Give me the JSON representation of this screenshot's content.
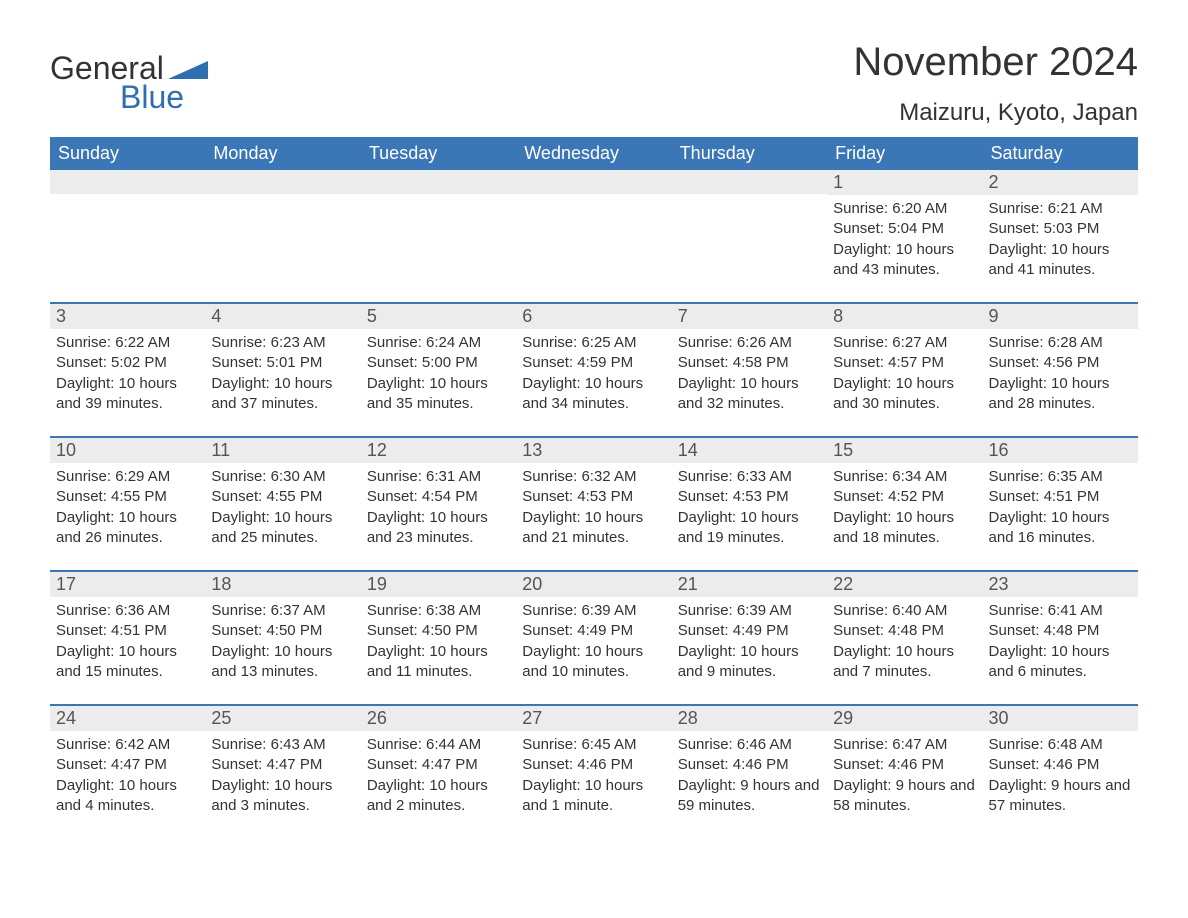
{
  "logo": {
    "text_general": "General",
    "text_blue": "Blue",
    "flag_color": "#2f6fb0"
  },
  "title": "November 2024",
  "location": "Maizuru, Kyoto, Japan",
  "colors": {
    "header_bg": "#3b76b6",
    "header_text": "#ffffff",
    "row_divider": "#3b76b6",
    "daynum_bg": "#ececec",
    "text": "#333333"
  },
  "weekdays": [
    "Sunday",
    "Monday",
    "Tuesday",
    "Wednesday",
    "Thursday",
    "Friday",
    "Saturday"
  ],
  "weeks": [
    [
      {
        "day": "",
        "sunrise": "",
        "sunset": "",
        "daylight": ""
      },
      {
        "day": "",
        "sunrise": "",
        "sunset": "",
        "daylight": ""
      },
      {
        "day": "",
        "sunrise": "",
        "sunset": "",
        "daylight": ""
      },
      {
        "day": "",
        "sunrise": "",
        "sunset": "",
        "daylight": ""
      },
      {
        "day": "",
        "sunrise": "",
        "sunset": "",
        "daylight": ""
      },
      {
        "day": "1",
        "sunrise": "Sunrise: 6:20 AM",
        "sunset": "Sunset: 5:04 PM",
        "daylight": "Daylight: 10 hours and 43 minutes."
      },
      {
        "day": "2",
        "sunrise": "Sunrise: 6:21 AM",
        "sunset": "Sunset: 5:03 PM",
        "daylight": "Daylight: 10 hours and 41 minutes."
      }
    ],
    [
      {
        "day": "3",
        "sunrise": "Sunrise: 6:22 AM",
        "sunset": "Sunset: 5:02 PM",
        "daylight": "Daylight: 10 hours and 39 minutes."
      },
      {
        "day": "4",
        "sunrise": "Sunrise: 6:23 AM",
        "sunset": "Sunset: 5:01 PM",
        "daylight": "Daylight: 10 hours and 37 minutes."
      },
      {
        "day": "5",
        "sunrise": "Sunrise: 6:24 AM",
        "sunset": "Sunset: 5:00 PM",
        "daylight": "Daylight: 10 hours and 35 minutes."
      },
      {
        "day": "6",
        "sunrise": "Sunrise: 6:25 AM",
        "sunset": "Sunset: 4:59 PM",
        "daylight": "Daylight: 10 hours and 34 minutes."
      },
      {
        "day": "7",
        "sunrise": "Sunrise: 6:26 AM",
        "sunset": "Sunset: 4:58 PM",
        "daylight": "Daylight: 10 hours and 32 minutes."
      },
      {
        "day": "8",
        "sunrise": "Sunrise: 6:27 AM",
        "sunset": "Sunset: 4:57 PM",
        "daylight": "Daylight: 10 hours and 30 minutes."
      },
      {
        "day": "9",
        "sunrise": "Sunrise: 6:28 AM",
        "sunset": "Sunset: 4:56 PM",
        "daylight": "Daylight: 10 hours and 28 minutes."
      }
    ],
    [
      {
        "day": "10",
        "sunrise": "Sunrise: 6:29 AM",
        "sunset": "Sunset: 4:55 PM",
        "daylight": "Daylight: 10 hours and 26 minutes."
      },
      {
        "day": "11",
        "sunrise": "Sunrise: 6:30 AM",
        "sunset": "Sunset: 4:55 PM",
        "daylight": "Daylight: 10 hours and 25 minutes."
      },
      {
        "day": "12",
        "sunrise": "Sunrise: 6:31 AM",
        "sunset": "Sunset: 4:54 PM",
        "daylight": "Daylight: 10 hours and 23 minutes."
      },
      {
        "day": "13",
        "sunrise": "Sunrise: 6:32 AM",
        "sunset": "Sunset: 4:53 PM",
        "daylight": "Daylight: 10 hours and 21 minutes."
      },
      {
        "day": "14",
        "sunrise": "Sunrise: 6:33 AM",
        "sunset": "Sunset: 4:53 PM",
        "daylight": "Daylight: 10 hours and 19 minutes."
      },
      {
        "day": "15",
        "sunrise": "Sunrise: 6:34 AM",
        "sunset": "Sunset: 4:52 PM",
        "daylight": "Daylight: 10 hours and 18 minutes."
      },
      {
        "day": "16",
        "sunrise": "Sunrise: 6:35 AM",
        "sunset": "Sunset: 4:51 PM",
        "daylight": "Daylight: 10 hours and 16 minutes."
      }
    ],
    [
      {
        "day": "17",
        "sunrise": "Sunrise: 6:36 AM",
        "sunset": "Sunset: 4:51 PM",
        "daylight": "Daylight: 10 hours and 15 minutes."
      },
      {
        "day": "18",
        "sunrise": "Sunrise: 6:37 AM",
        "sunset": "Sunset: 4:50 PM",
        "daylight": "Daylight: 10 hours and 13 minutes."
      },
      {
        "day": "19",
        "sunrise": "Sunrise: 6:38 AM",
        "sunset": "Sunset: 4:50 PM",
        "daylight": "Daylight: 10 hours and 11 minutes."
      },
      {
        "day": "20",
        "sunrise": "Sunrise: 6:39 AM",
        "sunset": "Sunset: 4:49 PM",
        "daylight": "Daylight: 10 hours and 10 minutes."
      },
      {
        "day": "21",
        "sunrise": "Sunrise: 6:39 AM",
        "sunset": "Sunset: 4:49 PM",
        "daylight": "Daylight: 10 hours and 9 minutes."
      },
      {
        "day": "22",
        "sunrise": "Sunrise: 6:40 AM",
        "sunset": "Sunset: 4:48 PM",
        "daylight": "Daylight: 10 hours and 7 minutes."
      },
      {
        "day": "23",
        "sunrise": "Sunrise: 6:41 AM",
        "sunset": "Sunset: 4:48 PM",
        "daylight": "Daylight: 10 hours and 6 minutes."
      }
    ],
    [
      {
        "day": "24",
        "sunrise": "Sunrise: 6:42 AM",
        "sunset": "Sunset: 4:47 PM",
        "daylight": "Daylight: 10 hours and 4 minutes."
      },
      {
        "day": "25",
        "sunrise": "Sunrise: 6:43 AM",
        "sunset": "Sunset: 4:47 PM",
        "daylight": "Daylight: 10 hours and 3 minutes."
      },
      {
        "day": "26",
        "sunrise": "Sunrise: 6:44 AM",
        "sunset": "Sunset: 4:47 PM",
        "daylight": "Daylight: 10 hours and 2 minutes."
      },
      {
        "day": "27",
        "sunrise": "Sunrise: 6:45 AM",
        "sunset": "Sunset: 4:46 PM",
        "daylight": "Daylight: 10 hours and 1 minute."
      },
      {
        "day": "28",
        "sunrise": "Sunrise: 6:46 AM",
        "sunset": "Sunset: 4:46 PM",
        "daylight": "Daylight: 9 hours and 59 minutes."
      },
      {
        "day": "29",
        "sunrise": "Sunrise: 6:47 AM",
        "sunset": "Sunset: 4:46 PM",
        "daylight": "Daylight: 9 hours and 58 minutes."
      },
      {
        "day": "30",
        "sunrise": "Sunrise: 6:48 AM",
        "sunset": "Sunset: 4:46 PM",
        "daylight": "Daylight: 9 hours and 57 minutes."
      }
    ]
  ]
}
